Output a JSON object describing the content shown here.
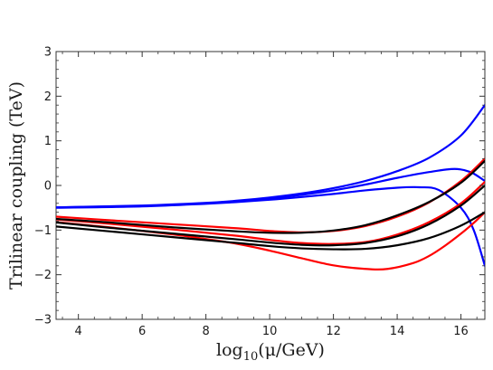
{
  "chart_data": {
    "type": "line",
    "xlabel": "log10(μ/GeV)",
    "xlabel_parts": {
      "base": "log",
      "sub": "10",
      "rest": "(μ/GeV)"
    },
    "ylabel": "Trilinear coupling (TeV)",
    "xlim": [
      3.3,
      16.75
    ],
    "ylim": [
      -3,
      3
    ],
    "xticks": [
      4,
      6,
      8,
      10,
      12,
      14,
      16
    ],
    "yticks": [
      -3,
      -2,
      -1,
      0,
      1,
      2,
      3
    ],
    "grid": false,
    "legend": "none",
    "series": [
      {
        "color": "#0000ff",
        "points": [
          [
            3.3,
            -0.49
          ],
          [
            6,
            -0.45
          ],
          [
            8,
            -0.39
          ],
          [
            9,
            -0.34
          ],
          [
            10,
            -0.27
          ],
          [
            11,
            -0.18
          ],
          [
            12,
            -0.06
          ],
          [
            13,
            0.1
          ],
          [
            14,
            0.32
          ],
          [
            15,
            0.62
          ],
          [
            16,
            1.12
          ],
          [
            16.75,
            1.8
          ]
        ]
      },
      {
        "color": "#0000ff",
        "points": [
          [
            3.3,
            -0.49
          ],
          [
            6,
            -0.46
          ],
          [
            8,
            -0.4
          ],
          [
            9,
            -0.35
          ],
          [
            10,
            -0.29
          ],
          [
            11,
            -0.21
          ],
          [
            12,
            -0.11
          ],
          [
            13,
            0.02
          ],
          [
            14,
            0.17
          ],
          [
            15,
            0.3
          ],
          [
            15.8,
            0.37
          ],
          [
            16.3,
            0.3
          ],
          [
            16.75,
            0.1
          ]
        ]
      },
      {
        "color": "#0000ff",
        "points": [
          [
            3.3,
            -0.5
          ],
          [
            6,
            -0.47
          ],
          [
            8,
            -0.41
          ],
          [
            9,
            -0.37
          ],
          [
            10,
            -0.32
          ],
          [
            11,
            -0.26
          ],
          [
            12,
            -0.19
          ],
          [
            13,
            -0.11
          ],
          [
            14,
            -0.05
          ],
          [
            14.7,
            -0.04
          ],
          [
            15.3,
            -0.1
          ],
          [
            16,
            -0.5
          ],
          [
            16.4,
            -1.0
          ],
          [
            16.75,
            -1.8
          ]
        ]
      },
      {
        "color": "#ff0000",
        "points": [
          [
            3.3,
            -0.7
          ],
          [
            5,
            -0.78
          ],
          [
            7,
            -0.87
          ],
          [
            9,
            -0.96
          ],
          [
            10,
            -1.02
          ],
          [
            11,
            -1.05
          ],
          [
            12,
            -1.02
          ],
          [
            13,
            -0.91
          ],
          [
            14,
            -0.7
          ],
          [
            15,
            -0.38
          ],
          [
            16,
            0.1
          ],
          [
            16.75,
            0.6
          ]
        ]
      },
      {
        "color": "#ff0000",
        "points": [
          [
            3.3,
            -0.76
          ],
          [
            5,
            -0.86
          ],
          [
            7,
            -0.99
          ],
          [
            9,
            -1.13
          ],
          [
            10,
            -1.22
          ],
          [
            11,
            -1.29
          ],
          [
            12,
            -1.31
          ],
          [
            13,
            -1.27
          ],
          [
            14,
            -1.1
          ],
          [
            15,
            -0.82
          ],
          [
            16,
            -0.4
          ],
          [
            16.75,
            0.08
          ]
        ]
      },
      {
        "color": "#ff0000",
        "points": [
          [
            3.3,
            -0.82
          ],
          [
            5,
            -0.94
          ],
          [
            7,
            -1.1
          ],
          [
            8,
            -1.2
          ],
          [
            9,
            -1.31
          ],
          [
            10,
            -1.46
          ],
          [
            11,
            -1.63
          ],
          [
            12,
            -1.79
          ],
          [
            13,
            -1.87
          ],
          [
            13.7,
            -1.87
          ],
          [
            14.5,
            -1.74
          ],
          [
            15,
            -1.58
          ],
          [
            15.5,
            -1.35
          ],
          [
            16,
            -1.08
          ],
          [
            16.4,
            -0.84
          ],
          [
            16.75,
            -0.6
          ]
        ]
      },
      {
        "color": "#000000",
        "points": [
          [
            3.3,
            -0.75
          ],
          [
            5,
            -0.83
          ],
          [
            7,
            -0.94
          ],
          [
            9,
            -1.03
          ],
          [
            10,
            -1.06
          ],
          [
            11,
            -1.06
          ],
          [
            12,
            -1.01
          ],
          [
            13,
            -0.89
          ],
          [
            14,
            -0.67
          ],
          [
            15,
            -0.37
          ],
          [
            16,
            0.06
          ],
          [
            16.75,
            0.55
          ]
        ]
      },
      {
        "color": "#000000",
        "points": [
          [
            3.3,
            -0.83
          ],
          [
            5,
            -0.95
          ],
          [
            7,
            -1.08
          ],
          [
            9,
            -1.21
          ],
          [
            10,
            -1.28
          ],
          [
            11,
            -1.33
          ],
          [
            12,
            -1.34
          ],
          [
            13,
            -1.29
          ],
          [
            14,
            -1.14
          ],
          [
            15,
            -0.87
          ],
          [
            16,
            -0.45
          ],
          [
            16.75,
            0.0
          ]
        ]
      },
      {
        "color": "#000000",
        "points": [
          [
            3.3,
            -0.92
          ],
          [
            5,
            -1.03
          ],
          [
            7,
            -1.16
          ],
          [
            9,
            -1.29
          ],
          [
            10,
            -1.36
          ],
          [
            11,
            -1.41
          ],
          [
            12,
            -1.43
          ],
          [
            13,
            -1.42
          ],
          [
            14,
            -1.34
          ],
          [
            15,
            -1.18
          ],
          [
            16,
            -0.9
          ],
          [
            16.75,
            -0.6
          ]
        ]
      }
    ]
  }
}
